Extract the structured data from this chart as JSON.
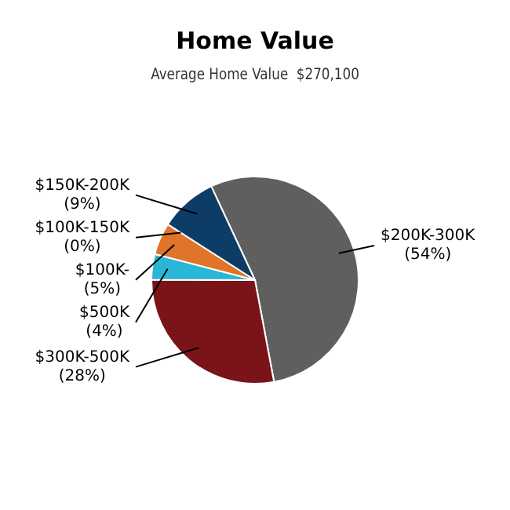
{
  "chart_data": {
    "type": "pie",
    "title": "Home Value",
    "subtitle": "Average Home Value  $270,100",
    "categories": [
      "$200K-300K",
      "$300K-500K",
      "$500K",
      "$100K-",
      "$100K-150K",
      "$150K-200K"
    ],
    "values": [
      54,
      28,
      4,
      5,
      0,
      9
    ],
    "value_labels": [
      "(54%)",
      "(28%)",
      "(4%)",
      "(5%)",
      "(0%)",
      "(9%)"
    ],
    "colors": [
      "#5f5f5f",
      "#7a1418",
      "#2ab6d6",
      "#e07428",
      "#c9a227",
      "#0d3d66"
    ]
  }
}
